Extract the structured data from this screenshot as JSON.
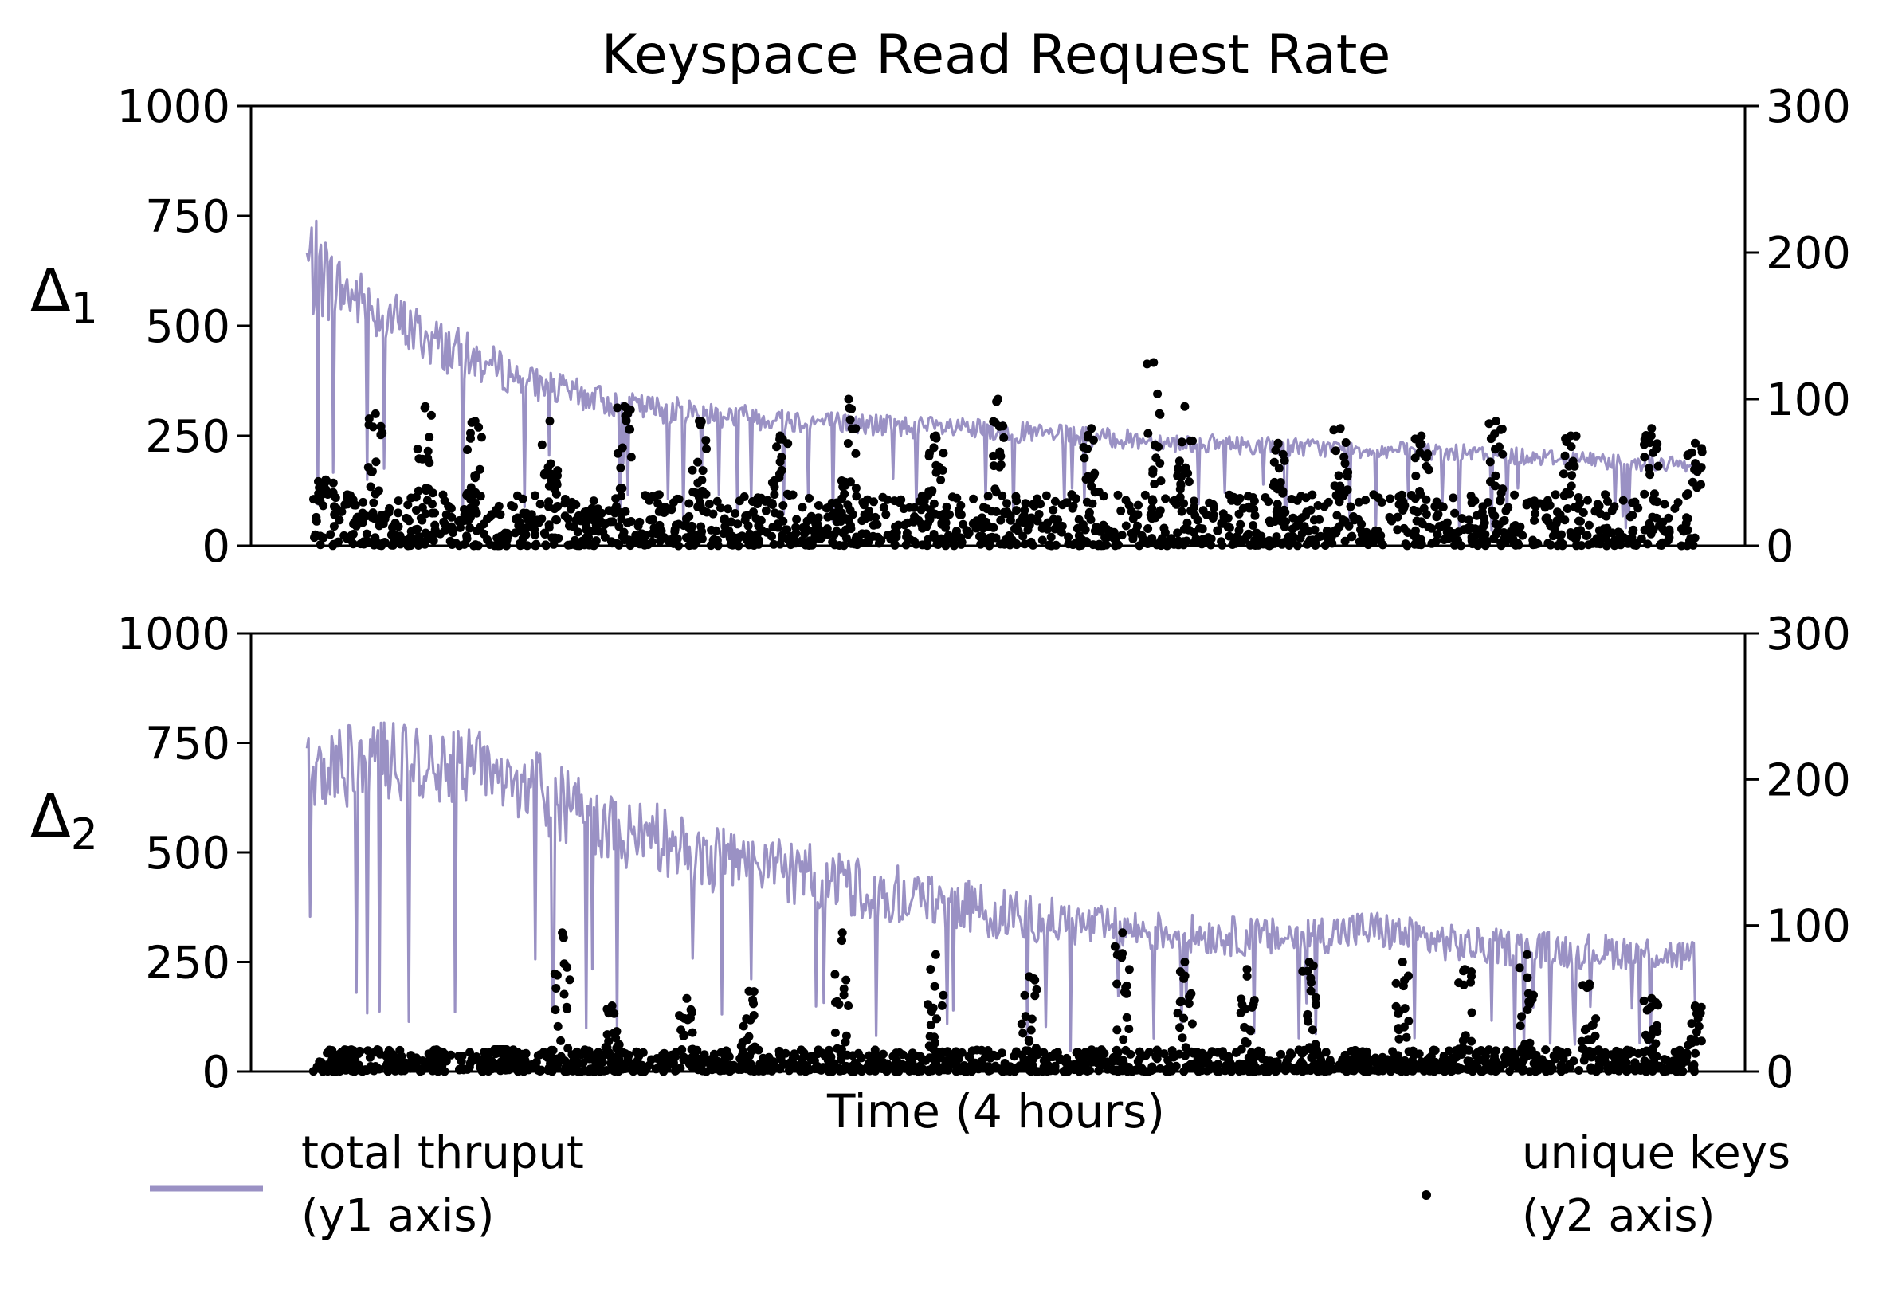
{
  "title": "Keyspace Read Request Rate",
  "xlabel": "Time (4 hours)",
  "colors": {
    "thruput": "#9a91c4",
    "keys": "#000000",
    "axis": "#000000"
  },
  "legend": {
    "thruput_line1": "total thruput",
    "thruput_line2": "(y1 axis)",
    "keys_line1": "unique keys",
    "keys_line2": "(y2 axis)",
    "placement": "below"
  },
  "chart_data": [
    {
      "type": "line+scatter",
      "panel": "top",
      "ylabel_base": "Δ",
      "ylabel_sub": "1",
      "x_range": [
        0,
        240
      ],
      "y1_range": [
        0,
        1000
      ],
      "y1_ticks": [
        "0",
        "250",
        "500",
        "750",
        "1000"
      ],
      "y2_range": [
        0,
        300
      ],
      "y2_ticks": [
        "0",
        "100",
        "200",
        "300"
      ],
      "grid": false,
      "thruput_envelope_minutes": [
        9,
        15,
        30,
        45,
        60,
        90,
        120,
        150,
        180,
        210,
        232
      ],
      "thruput_envelope_upper": [
        770,
        650,
        520,
        410,
        350,
        310,
        285,
        255,
        240,
        220,
        200
      ],
      "thruput_envelope_lower": [
        370,
        430,
        330,
        290,
        250,
        225,
        210,
        190,
        175,
        160,
        140
      ],
      "unique_keys_peak_minutes": [
        12,
        20,
        28,
        36,
        48,
        60,
        72,
        85,
        96,
        110,
        120,
        135,
        145,
        150,
        165,
        175,
        188,
        200,
        212,
        225,
        232
      ],
      "unique_keys_peak_values": [
        45,
        90,
        95,
        85,
        85,
        95,
        85,
        75,
        100,
        75,
        100,
        80,
        125,
        95,
        70,
        80,
        75,
        85,
        75,
        80,
        70
      ],
      "unique_keys_baseline_max": 35
    },
    {
      "type": "line+scatter",
      "panel": "bottom",
      "ylabel_base": "Δ",
      "ylabel_sub": "2",
      "x_range": [
        0,
        240
      ],
      "y1_range": [
        0,
        1000
      ],
      "y1_ticks": [
        "0",
        "250",
        "500",
        "750",
        "1000"
      ],
      "y2_range": [
        0,
        300
      ],
      "y2_ticks": [
        "0",
        "100",
        "200",
        "300"
      ],
      "grid": false,
      "thruput_envelope_minutes": [
        9,
        20,
        35,
        42,
        50,
        60,
        75,
        90,
        105,
        120,
        135,
        150,
        165,
        180,
        195,
        210,
        225,
        232
      ],
      "thruput_envelope_upper": [
        790,
        800,
        790,
        760,
        700,
        640,
        560,
        520,
        470,
        420,
        380,
        360,
        350,
        370,
        330,
        320,
        310,
        300
      ],
      "thruput_envelope_lower": [
        450,
        520,
        500,
        480,
        420,
        360,
        320,
        290,
        260,
        240,
        230,
        220,
        210,
        230,
        200,
        190,
        190,
        180
      ],
      "unique_keys_peak_minutes": [
        15,
        30,
        40,
        50,
        58,
        70,
        80,
        95,
        110,
        125,
        140,
        150,
        160,
        170,
        185,
        195,
        205,
        215,
        225,
        232
      ],
      "unique_keys_peak_values": [
        3,
        5,
        15,
        95,
        45,
        50,
        55,
        95,
        80,
        65,
        95,
        75,
        70,
        75,
        75,
        70,
        80,
        60,
        50,
        45
      ],
      "unique_keys_baseline_max": 15
    }
  ]
}
